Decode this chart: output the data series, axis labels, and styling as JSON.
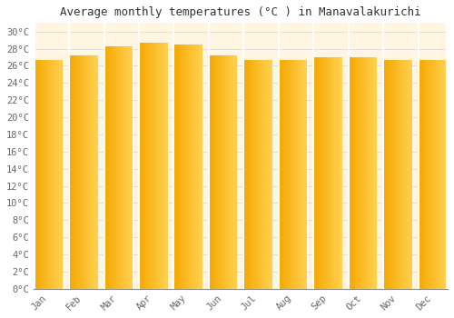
{
  "title": "Average monthly temperatures (°C ) in Manavalakurichi",
  "months": [
    "Jan",
    "Feb",
    "Mar",
    "Apr",
    "May",
    "Jun",
    "Jul",
    "Aug",
    "Sep",
    "Oct",
    "Nov",
    "Dec"
  ],
  "values": [
    26.7,
    27.2,
    28.3,
    28.7,
    28.5,
    27.2,
    26.7,
    26.7,
    27.0,
    27.0,
    26.7,
    26.7
  ],
  "bar_color_left": "#F5A800",
  "bar_color_right": "#FFD050",
  "bar_color_mid": "#FFC020",
  "background_color": "#FFFFFF",
  "plot_bg_color": "#FFF5E0",
  "grid_color": "#DDDDDD",
  "title_fontsize": 9,
  "tick_fontsize": 7.5,
  "ylim": [
    0,
    31
  ],
  "ytick_step": 2
}
